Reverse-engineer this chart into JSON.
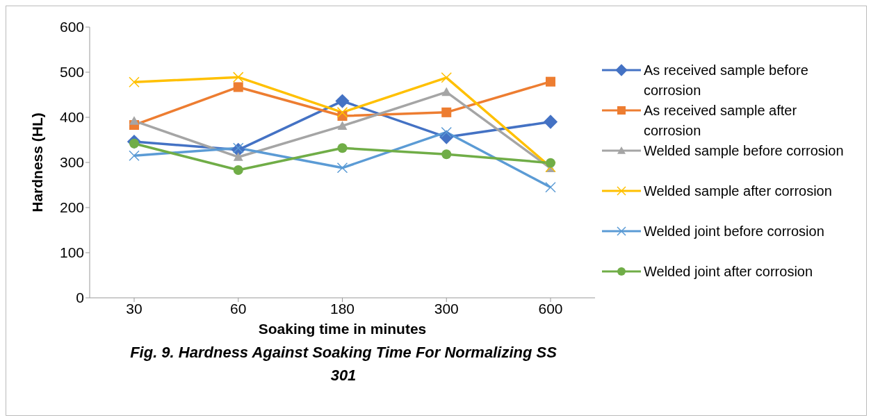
{
  "chart_data": {
    "type": "line",
    "xlabel": "Soaking time in minutes",
    "ylabel": "Hardness (HL)",
    "categories": [
      "30",
      "60",
      "180",
      "300",
      "600"
    ],
    "ylim": [
      0,
      600
    ],
    "yticks": [
      0,
      100,
      200,
      300,
      400,
      500,
      600
    ],
    "grid": false,
    "legend": "right",
    "series": [
      {
        "name": "As received sample before corrosion",
        "color": "#4472c4",
        "marker": "diamond",
        "values": [
          346,
          328,
          436,
          356,
          390
        ]
      },
      {
        "name": "As received sample after corrosion",
        "color": "#ed7d31",
        "marker": "square",
        "values": [
          383,
          467,
          403,
          411,
          479
        ]
      },
      {
        "name": "Welded sample before corrosion",
        "color": "#a5a5a5",
        "marker": "triangle",
        "values": [
          392,
          312,
          381,
          456,
          287
        ]
      },
      {
        "name": "Welded sample after corrosion",
        "color": "#ffc000",
        "marker": "cross",
        "values": [
          478,
          489,
          411,
          488,
          290
        ]
      },
      {
        "name": "Welded joint before corrosion",
        "color": "#5b9bd5",
        "marker": "cross",
        "values": [
          315,
          332,
          288,
          367,
          245
        ]
      },
      {
        "name": "Welded joint after corrosion",
        "color": "#70ad47",
        "marker": "circle",
        "values": [
          342,
          283,
          332,
          318,
          299
        ]
      }
    ],
    "annotations": [
      "Fig. 9. Hardness Against Soaking Time For Normalizing SS 301"
    ]
  }
}
